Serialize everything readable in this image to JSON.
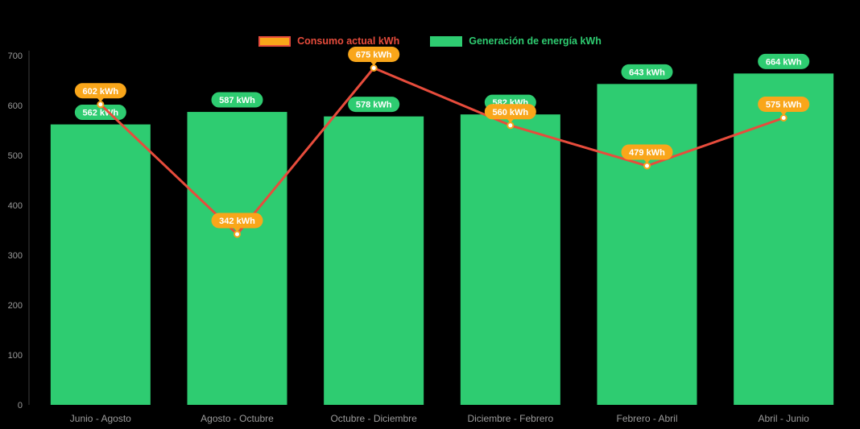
{
  "chart_data": {
    "type": "bar",
    "subtype": "bar_line_combo",
    "categories": [
      "Junio - Agosto",
      "Agosto - Octubre",
      "Octubre - Diciembre",
      "Diciembre - Febrero",
      "Febrero - Abril",
      "Abril - Junio"
    ],
    "series": [
      {
        "name": "Consumo actual kWh",
        "type": "line",
        "values": [
          602,
          342,
          675,
          560,
          479,
          575
        ],
        "line_color": "#E74C3C",
        "marker_stroke": "#F5A21B",
        "marker_fill": "#FFFFFF",
        "label_bg": "#F9A61A",
        "label_text_color": "#FFFFFF"
      },
      {
        "name": "Generación de energía kWh",
        "type": "bar",
        "values": [
          562,
          587,
          578,
          582,
          643,
          664
        ],
        "bar_color": "#2ECC71",
        "label_bg": "#2ECC71",
        "label_text_color": "#FFFFFF"
      }
    ],
    "value_suffix": "kWh",
    "value_labels": {
      "consumo": [
        "602 kWh",
        "342 kWh",
        "675 kWh",
        "560 kWh",
        "479 kWh",
        "575 kWh"
      ],
      "generacion": [
        "562 kWh",
        "587 kWh",
        "578 kWh",
        "582 kWh",
        "643 kWh",
        "664 kWh"
      ]
    },
    "title": "",
    "xlabel": "",
    "ylabel": "",
    "ylim": [
      0,
      700
    ],
    "yticks": [
      0,
      100,
      200,
      300,
      400,
      500,
      600,
      700
    ],
    "grid": false,
    "legend_position": "top",
    "background": "#000000",
    "axis_text_color": "#9B9B9B"
  }
}
